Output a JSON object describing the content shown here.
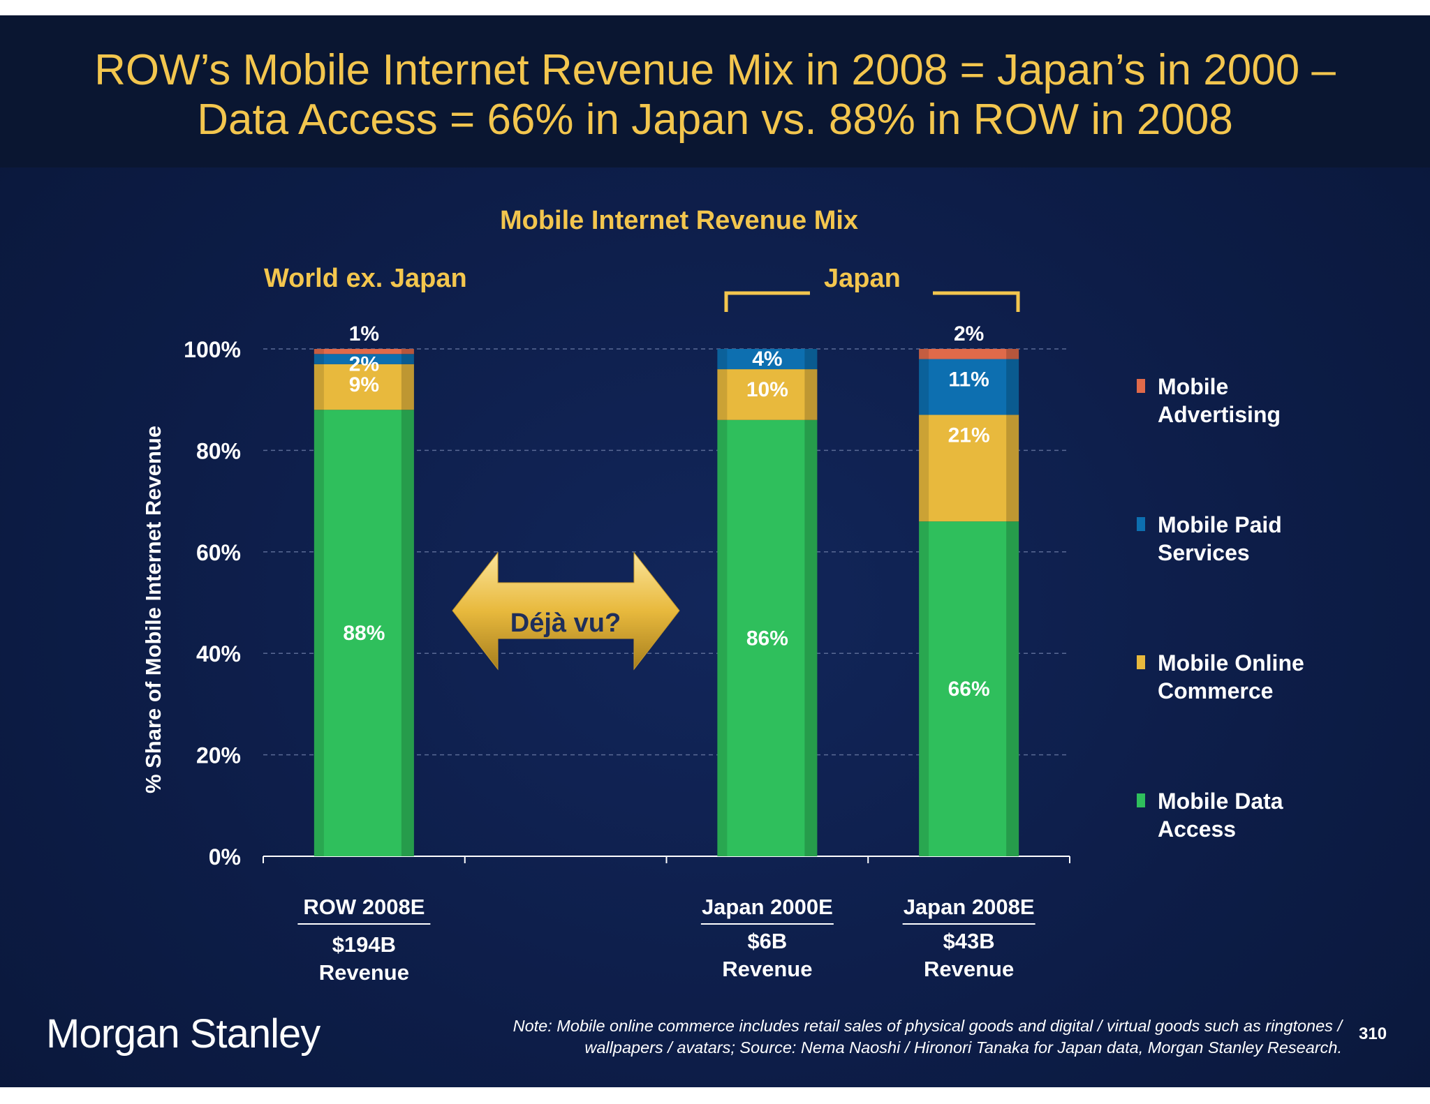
{
  "title": {
    "line1": "ROW’s Mobile Internet Revenue Mix in 2008 = Japan’s in 2000 –",
    "line2": "Data Access = 66% in Japan vs. 88% in ROW in 2008"
  },
  "chart_data": {
    "type": "bar",
    "stacked": true,
    "title": "Mobile Internet Revenue Mix",
    "ylabel": "% Share of Mobile Internet Revenue",
    "ylim": [
      0,
      100
    ],
    "yticks": [
      "0%",
      "20%",
      "40%",
      "60%",
      "80%",
      "100%"
    ],
    "grid": true,
    "legend_position": "right",
    "group_labels": [
      "World ex. Japan",
      "Japan"
    ],
    "categories": [
      "ROW 2008E",
      "Japan 2000E",
      "Japan 2008E"
    ],
    "category_revenue": [
      [
        "$194B",
        "Revenue"
      ],
      [
        "$6B",
        "Revenue"
      ],
      [
        "$43B",
        "Revenue"
      ]
    ],
    "series": [
      {
        "name": "Mobile Data Access",
        "legend_lines": [
          "Mobile Data",
          "Access"
        ],
        "color": "#2fbf5c",
        "values": [
          88,
          86,
          66
        ],
        "labels": [
          "88%",
          "86%",
          "66%"
        ]
      },
      {
        "name": "Mobile Online Commerce",
        "legend_lines": [
          "Mobile Online",
          "Commerce"
        ],
        "color": "#e8b93d",
        "values": [
          9,
          10,
          21
        ],
        "labels": [
          "9%",
          "10%",
          "21%"
        ]
      },
      {
        "name": "Mobile Paid Services",
        "legend_lines": [
          "Mobile Paid",
          "Services"
        ],
        "color": "#0d6fb0",
        "values": [
          2,
          4,
          11
        ],
        "labels": [
          "2%",
          "4%",
          "11%"
        ]
      },
      {
        "name": "Mobile Advertising",
        "legend_lines": [
          "Mobile",
          "Advertising"
        ],
        "color": "#e06a4a",
        "values": [
          1,
          0,
          2
        ],
        "labels": [
          "1%",
          "",
          "2%"
        ]
      }
    ],
    "annotation": "Déjà vu?"
  },
  "footnote": {
    "line1": "Note: Mobile online commerce includes retail sales of physical goods and digital / virtual goods such as ringtones /",
    "line2": "wallpapers / avatars; Source: Nema Naoshi / Hironori Tanaka for Japan data, Morgan Stanley Research."
  },
  "logo": "Morgan Stanley",
  "page_number": "310",
  "colors": {
    "title": "#f3c64e",
    "background": "#0d1d48",
    "text": "#ffffff"
  }
}
